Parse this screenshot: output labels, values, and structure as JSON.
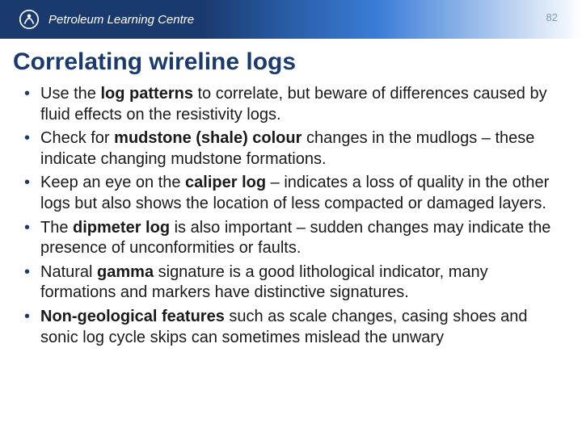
{
  "header": {
    "brand": "Petroleum Learning Centre",
    "page_number": "82",
    "brand_color": "#1a3a6e",
    "gradient_start": "#1a3a6e",
    "gradient_end": "#ffffff"
  },
  "title": {
    "text": "Correlating wireline logs",
    "color": "#1a3a6e",
    "fontsize": 30
  },
  "bullets": [
    {
      "parts": [
        {
          "t": "Use the ",
          "b": false
        },
        {
          "t": "log patterns",
          "b": true
        },
        {
          "t": " to correlate, but beware of differences caused by fluid effects on the resistivity logs.",
          "b": false
        }
      ]
    },
    {
      "parts": [
        {
          "t": "Check for ",
          "b": false
        },
        {
          "t": "mudstone (shale) colour",
          "b": true
        },
        {
          "t": " changes in the mudlogs – these indicate changing mudstone formations.",
          "b": false
        }
      ]
    },
    {
      "parts": [
        {
          "t": " Keep an eye on the ",
          "b": false
        },
        {
          "t": "caliper log",
          "b": true
        },
        {
          "t": " – indicates a loss of quality in the other logs but also shows the location of less compacted or damaged layers.",
          "b": false
        }
      ]
    },
    {
      "parts": [
        {
          "t": "The ",
          "b": false
        },
        {
          "t": "dipmeter log",
          "b": true
        },
        {
          "t": " is also important – sudden changes may indicate the presence of unconformities or faults.",
          "b": false
        }
      ]
    },
    {
      "parts": [
        {
          "t": "Natural ",
          "b": false
        },
        {
          "t": "gamma",
          "b": true
        },
        {
          "t": " signature is a good lithological indicator, many formations and markers have distinctive signatures.",
          "b": false
        }
      ]
    },
    {
      "parts": [
        {
          "t": "Non-geological features",
          "b": true
        },
        {
          "t": " such as scale changes, casing shoes and sonic log cycle skips can sometimes mislead the unwary",
          "b": false
        }
      ]
    }
  ],
  "bullet_color": "#1a3a6e",
  "body_fontsize": 20,
  "body_color": "#1a1a1a"
}
